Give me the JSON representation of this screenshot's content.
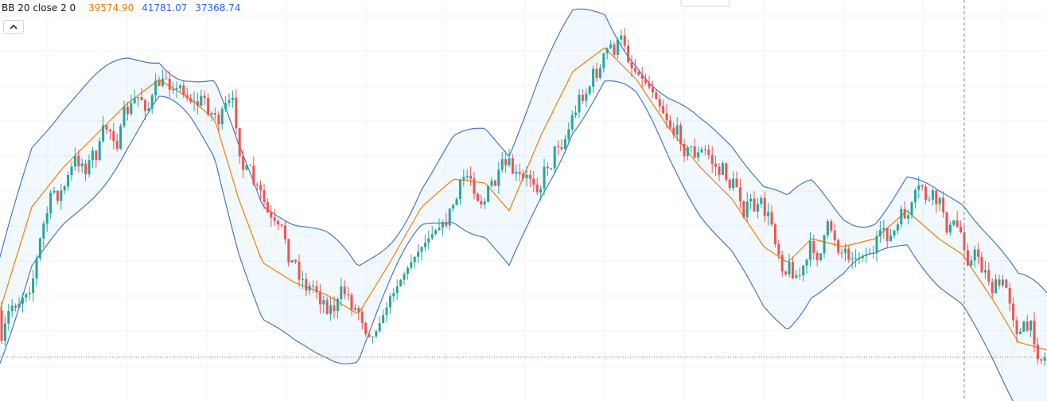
{
  "legend": {
    "name": "BB 20 close 2 0",
    "basis": "39574.90",
    "upper": "41781.07",
    "lower": "37368.74"
  }
}
